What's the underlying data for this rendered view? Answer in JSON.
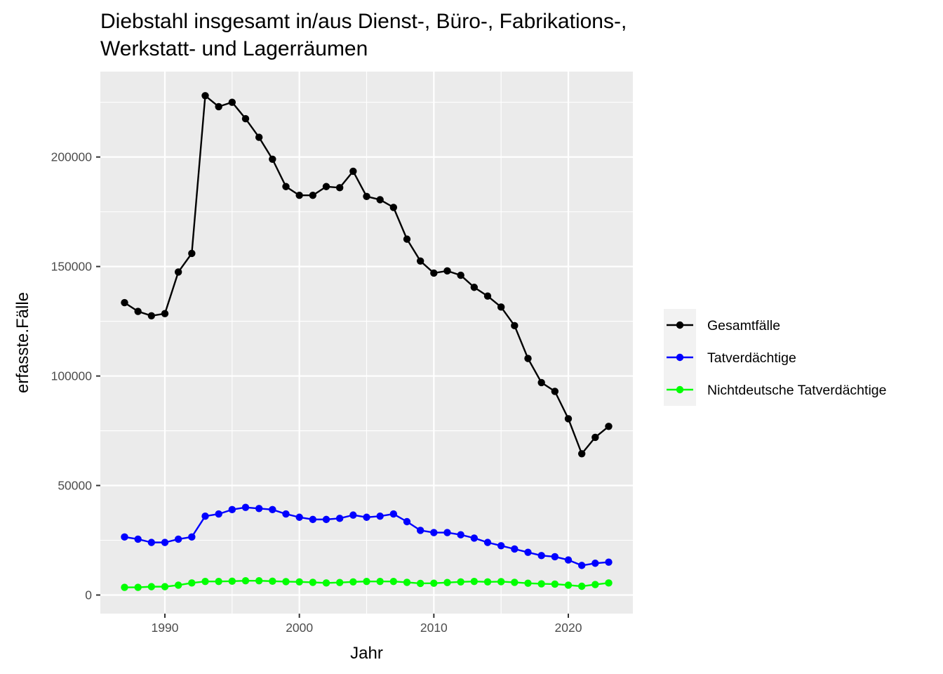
{
  "chart_data": {
    "type": "line",
    "title_lines": [
      "Diebstahl insgesamt in/aus Dienst-, Büro-, Fabrikations-,",
      "Werkstatt- und Lagerräumen"
    ],
    "xlabel": "Jahr",
    "ylabel": "erfasste.Fälle",
    "xlim": [
      1985.2,
      2024.8
    ],
    "ylim": [
      -8500,
      239000
    ],
    "x_ticks": [
      1990,
      2000,
      2010,
      2020
    ],
    "x_tick_labels": [
      "1990",
      "2000",
      "2010",
      "2020"
    ],
    "y_ticks": [
      0,
      50000,
      100000,
      150000,
      200000
    ],
    "y_tick_labels": [
      "0",
      "50000",
      "100000",
      "150000",
      "200000"
    ],
    "grid": true,
    "legend_position": "right",
    "x": [
      1987,
      1988,
      1989,
      1990,
      1991,
      1992,
      1993,
      1994,
      1995,
      1996,
      1997,
      1998,
      1999,
      2000,
      2001,
      2002,
      2003,
      2004,
      2005,
      2006,
      2007,
      2008,
      2009,
      2010,
      2011,
      2012,
      2013,
      2014,
      2015,
      2016,
      2017,
      2018,
      2019,
      2020,
      2021,
      2022,
      2023
    ],
    "series": [
      {
        "name": "Gesamtfälle",
        "color": "#000000",
        "values": [
          133500,
          129500,
          127500,
          128500,
          147500,
          156000,
          228000,
          223000,
          225000,
          217500,
          209000,
          199000,
          186500,
          182500,
          182500,
          186500,
          186000,
          193500,
          182000,
          180500,
          177000,
          162500,
          152500,
          147000,
          148000,
          146000,
          140500,
          136500,
          131500,
          123000,
          108000,
          97000,
          93000,
          80500,
          64500,
          72000,
          77000
        ]
      },
      {
        "name": "Tatverdächtige",
        "color": "#0000ff",
        "values": [
          26500,
          25500,
          24000,
          24000,
          25500,
          26500,
          36000,
          37000,
          39000,
          40000,
          39500,
          39000,
          37000,
          35500,
          34500,
          34500,
          35000,
          36500,
          35500,
          36000,
          37000,
          33500,
          29500,
          28500,
          28500,
          27500,
          26000,
          24000,
          22500,
          21000,
          19500,
          18000,
          17500,
          16000,
          13500,
          14500,
          15000
        ]
      },
      {
        "name": "Nichtdeutsche Tatverdächtige",
        "color": "#00ff00",
        "values": [
          3500,
          3500,
          3800,
          3800,
          4500,
          5500,
          6200,
          6200,
          6300,
          6500,
          6500,
          6300,
          6100,
          6000,
          5800,
          5500,
          5700,
          6000,
          6200,
          6200,
          6200,
          5800,
          5300,
          5400,
          5700,
          6000,
          6200,
          6000,
          6100,
          5800,
          5400,
          5100,
          5000,
          4500,
          4000,
          4800,
          5500
        ]
      }
    ]
  }
}
